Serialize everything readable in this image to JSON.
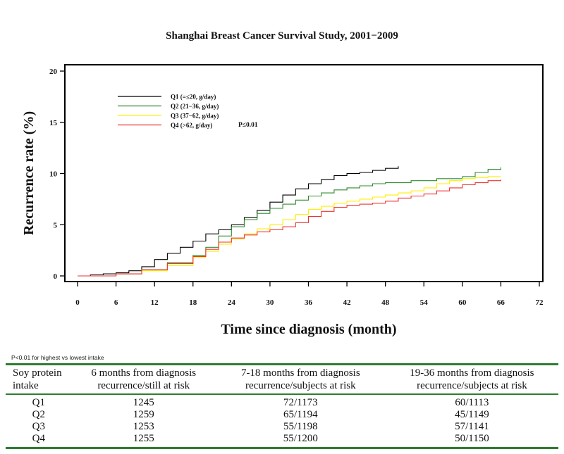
{
  "chart_data": {
    "type": "line",
    "title": "Shanghai Breast Cancer Survival Study, 2001−2009",
    "xlabel": "Time since diagnosis (month)",
    "ylabel": "Recurrence rate (%)",
    "xlim": [
      0,
      72
    ],
    "ylim": [
      0,
      20
    ],
    "xticks": [
      0,
      6,
      12,
      18,
      24,
      30,
      36,
      42,
      48,
      54,
      60,
      66,
      72
    ],
    "yticks": [
      0,
      5,
      10,
      15,
      20
    ],
    "grid": false,
    "legend_position": "top-left",
    "annotation": "P≤0.01",
    "series": [
      {
        "name": "Q1 (=≤20, g/day)",
        "color": "#000000",
        "x": [
          0,
          2,
          4,
          6,
          8,
          10,
          12,
          14,
          16,
          18,
          20,
          22,
          24,
          26,
          28,
          30,
          32,
          34,
          36,
          38,
          40,
          42,
          44,
          46,
          48,
          50
        ],
        "y": [
          0,
          0.1,
          0.2,
          0.3,
          0.5,
          0.9,
          1.6,
          2.2,
          2.8,
          3.4,
          4.1,
          4.5,
          5.0,
          5.7,
          6.4,
          7.2,
          7.9,
          8.5,
          9.0,
          9.4,
          9.8,
          10.0,
          10.1,
          10.3,
          10.5,
          10.7
        ]
      },
      {
        "name": "Q2 (21−36, g/day)",
        "color": "#2e8b2e",
        "x": [
          0,
          6,
          10,
          14,
          18,
          20,
          22,
          24,
          26,
          28,
          30,
          32,
          34,
          36,
          38,
          40,
          42,
          44,
          46,
          48,
          52,
          56,
          60,
          62,
          64,
          66
        ],
        "y": [
          0,
          0.2,
          0.6,
          1.3,
          2.0,
          2.8,
          3.9,
          4.8,
          5.5,
          6.1,
          6.6,
          7.0,
          7.4,
          7.8,
          8.1,
          8.4,
          8.6,
          8.8,
          9.0,
          9.1,
          9.3,
          9.5,
          9.7,
          10.1,
          10.4,
          10.6
        ]
      },
      {
        "name": "Q3 (37−62, g/day)",
        "color": "#ffee00",
        "x": [
          0,
          6,
          10,
          14,
          18,
          20,
          22,
          24,
          26,
          28,
          30,
          32,
          34,
          36,
          38,
          40,
          42,
          44,
          46,
          48,
          50,
          52,
          54,
          56,
          58,
          60,
          62,
          64,
          66
        ],
        "y": [
          0,
          0.2,
          0.5,
          1.0,
          1.8,
          2.4,
          3.1,
          3.6,
          4.1,
          4.6,
          5.0,
          5.5,
          6.0,
          6.5,
          6.8,
          7.1,
          7.3,
          7.5,
          7.7,
          7.9,
          8.1,
          8.3,
          8.6,
          9.0,
          9.3,
          9.5,
          9.6,
          9.7,
          9.7
        ]
      },
      {
        "name": "Q4 (>62, g/day)",
        "color": "#ee3333",
        "x": [
          0,
          6,
          10,
          14,
          18,
          20,
          22,
          24,
          26,
          28,
          30,
          32,
          34,
          36,
          38,
          40,
          42,
          44,
          46,
          48,
          50,
          52,
          54,
          56,
          58,
          60,
          62,
          64,
          66
        ],
        "y": [
          0,
          0.2,
          0.6,
          1.2,
          1.9,
          2.6,
          3.3,
          3.7,
          4.0,
          4.3,
          4.5,
          4.8,
          5.2,
          5.8,
          6.3,
          6.7,
          6.9,
          7.0,
          7.1,
          7.3,
          7.6,
          7.8,
          8.0,
          8.3,
          8.6,
          8.9,
          9.1,
          9.3,
          9.4
        ]
      }
    ]
  },
  "footnote": "P<0.01 for highest vs lowest intake",
  "risk_table": {
    "headers": [
      "Soy protein intake",
      "6 months from diagnosis recurrence/still at risk",
      "7-18 months from diagnosis recurrence/subjects at risk",
      "19-36 months from diagnosis recurrence/subjects at risk"
    ],
    "rows": [
      [
        "Q1",
        "1245",
        "72/1173",
        "60/1113"
      ],
      [
        "Q2",
        "1259",
        "65/1194",
        "45/1149"
      ],
      [
        "Q3",
        "1253",
        "55/1198",
        "57/1141"
      ],
      [
        "Q4",
        "1255",
        "55/1200",
        "50/1150"
      ]
    ]
  }
}
